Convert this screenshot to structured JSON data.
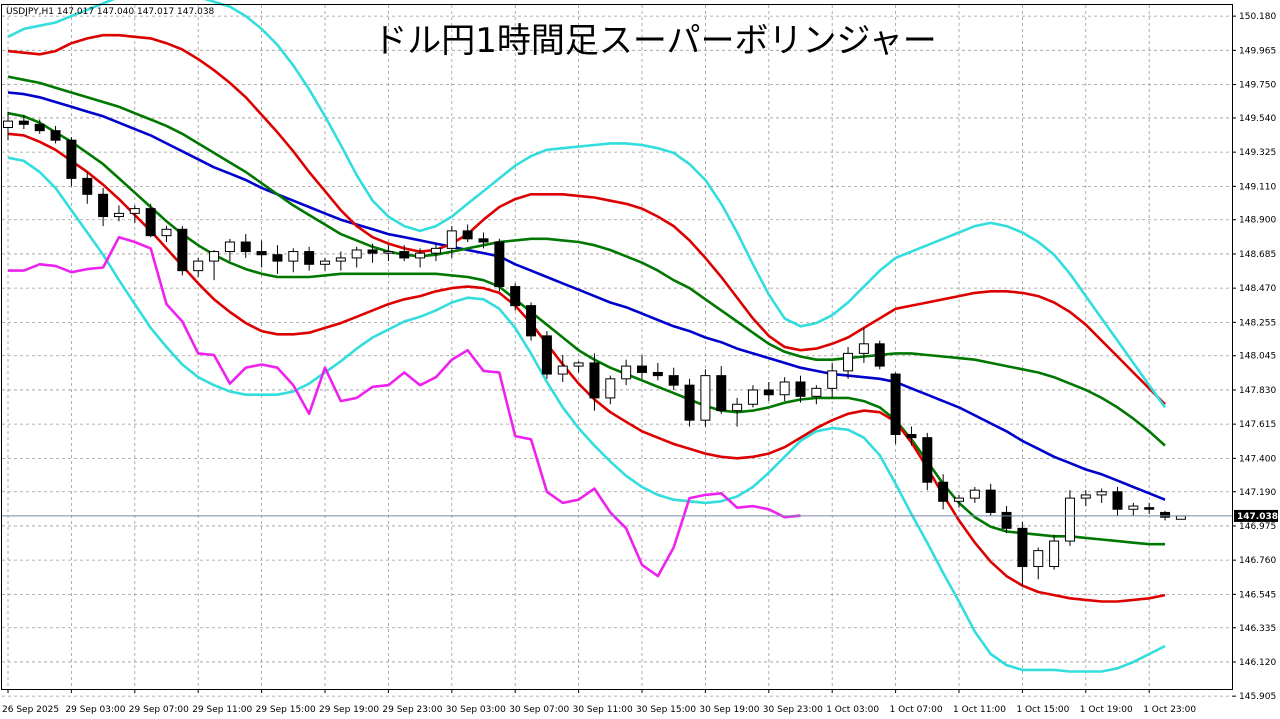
{
  "chart_data": {
    "type": "candlestick",
    "title": "ドル円1時間足スーパーボリンジャー",
    "symbol_info": "USDJPY,H1  147.017 147.040 147.017 147.038",
    "current_price": "147.038",
    "ylim": [
      145.95,
      150.25
    ],
    "xlim": [
      0,
      74
    ],
    "grid": true,
    "y_ticks": [
      "150.180",
      "149.965",
      "149.750",
      "149.540",
      "149.325",
      "149.110",
      "148.900",
      "148.685",
      "148.470",
      "148.255",
      "148.045",
      "147.830",
      "147.615",
      "147.400",
      "147.190",
      "146.975",
      "146.760",
      "146.545",
      "146.335",
      "146.120",
      "145.905"
    ],
    "x_ticks": [
      {
        "x": 0,
        "label": "26 Sep 2025"
      },
      {
        "x": 4,
        "label": "29 Sep 03:00"
      },
      {
        "x": 8,
        "label": "29 Sep 07:00"
      },
      {
        "x": 12,
        "label": "29 Sep 11:00"
      },
      {
        "x": 16,
        "label": "29 Sep 15:00"
      },
      {
        "x": 20,
        "label": "29 Sep 19:00"
      },
      {
        "x": 24,
        "label": "29 Sep 23:00"
      },
      {
        "x": 28,
        "label": "30 Sep 03:00"
      },
      {
        "x": 32,
        "label": "30 Sep 07:00"
      },
      {
        "x": 36,
        "label": "30 Sep 11:00"
      },
      {
        "x": 40,
        "label": "30 Sep 15:00"
      },
      {
        "x": 44,
        "label": "30 Sep 19:00"
      },
      {
        "x": 48,
        "label": "30 Sep 23:00"
      },
      {
        "x": 52,
        "label": "1 Oct 03:00"
      },
      {
        "x": 56,
        "label": "1 Oct 07:00"
      },
      {
        "x": 60,
        "label": "1 Oct 11:00"
      },
      {
        "x": 64,
        "label": "1 Oct 15:00"
      },
      {
        "x": 68,
        "label": "1 Oct 19:00"
      },
      {
        "x": 72,
        "label": "1 Oct 23:00"
      }
    ],
    "candles": [
      [
        149.48,
        149.58,
        149.4,
        149.52
      ],
      [
        149.52,
        149.56,
        149.47,
        149.5
      ],
      [
        149.5,
        149.53,
        149.44,
        149.46
      ],
      [
        149.46,
        149.49,
        149.38,
        149.4
      ],
      [
        149.4,
        149.42,
        149.11,
        149.16
      ],
      [
        149.16,
        149.2,
        149.0,
        149.06
      ],
      [
        149.06,
        149.1,
        148.86,
        148.92
      ],
      [
        148.92,
        148.99,
        148.89,
        148.94
      ],
      [
        148.94,
        148.99,
        148.88,
        148.97
      ],
      [
        148.97,
        149.0,
        148.79,
        148.8
      ],
      [
        148.8,
        148.86,
        148.76,
        148.84
      ],
      [
        148.84,
        148.86,
        148.55,
        148.58
      ],
      [
        148.58,
        148.66,
        148.54,
        148.64
      ],
      [
        148.64,
        148.71,
        148.52,
        148.7
      ],
      [
        148.7,
        148.78,
        148.64,
        148.76
      ],
      [
        148.76,
        148.81,
        148.66,
        148.7
      ],
      [
        148.7,
        148.77,
        148.6,
        148.68
      ],
      [
        148.68,
        148.74,
        148.56,
        148.64
      ],
      [
        148.64,
        148.72,
        148.57,
        148.7
      ],
      [
        148.7,
        148.73,
        148.58,
        148.62
      ],
      [
        148.62,
        148.66,
        148.58,
        148.64
      ],
      [
        148.64,
        148.7,
        148.58,
        148.66
      ],
      [
        148.66,
        148.73,
        148.6,
        148.71
      ],
      [
        148.71,
        148.75,
        148.63,
        148.69
      ],
      [
        148.69,
        148.74,
        148.64,
        148.7
      ],
      [
        148.7,
        148.74,
        148.64,
        148.66
      ],
      [
        148.66,
        148.72,
        148.6,
        148.69
      ],
      [
        148.69,
        148.75,
        148.64,
        148.72
      ],
      [
        148.72,
        148.86,
        148.66,
        148.83
      ],
      [
        148.83,
        148.87,
        148.76,
        148.78
      ],
      [
        148.78,
        148.82,
        148.72,
        148.76
      ],
      [
        148.76,
        148.78,
        148.45,
        148.48
      ],
      [
        148.48,
        148.5,
        148.33,
        148.36
      ],
      [
        148.36,
        148.38,
        148.14,
        148.17
      ],
      [
        148.17,
        148.2,
        147.9,
        147.93
      ],
      [
        147.93,
        148.05,
        147.88,
        147.98
      ],
      [
        147.98,
        148.01,
        147.94,
        148.0
      ],
      [
        148.0,
        148.06,
        147.7,
        147.78
      ],
      [
        147.78,
        147.92,
        147.74,
        147.9
      ],
      [
        147.9,
        148.02,
        147.86,
        147.98
      ],
      [
        147.98,
        148.05,
        147.9,
        147.94
      ],
      [
        147.94,
        148.0,
        147.89,
        147.92
      ],
      [
        147.92,
        147.97,
        147.83,
        147.86
      ],
      [
        147.86,
        147.9,
        147.6,
        147.64
      ],
      [
        147.64,
        147.96,
        147.6,
        147.92
      ],
      [
        147.92,
        147.98,
        147.68,
        147.7
      ],
      [
        147.7,
        147.78,
        147.6,
        147.74
      ],
      [
        147.74,
        147.86,
        147.72,
        147.83
      ],
      [
        147.83,
        147.88,
        147.76,
        147.8
      ],
      [
        147.8,
        147.91,
        147.76,
        147.88
      ],
      [
        147.88,
        147.92,
        147.75,
        147.79
      ],
      [
        147.79,
        147.86,
        147.74,
        147.84
      ],
      [
        147.84,
        148.0,
        147.78,
        147.95
      ],
      [
        147.95,
        148.1,
        147.9,
        148.06
      ],
      [
        148.06,
        148.22,
        148.0,
        148.12
      ],
      [
        148.12,
        148.14,
        147.96,
        147.98
      ],
      [
        147.93,
        147.94,
        147.49,
        147.55
      ],
      [
        147.55,
        147.6,
        147.48,
        147.53
      ],
      [
        147.53,
        147.56,
        147.2,
        147.25
      ],
      [
        147.25,
        147.3,
        147.08,
        147.13
      ],
      [
        147.13,
        147.17,
        147.09,
        147.15
      ],
      [
        147.15,
        147.22,
        147.12,
        147.2
      ],
      [
        147.2,
        147.24,
        147.04,
        147.06
      ],
      [
        147.06,
        147.1,
        146.93,
        146.96
      ],
      [
        146.96,
        147.0,
        146.6,
        146.72
      ],
      [
        146.72,
        146.84,
        146.64,
        146.82
      ],
      [
        146.72,
        146.92,
        146.7,
        146.88
      ],
      [
        146.88,
        147.2,
        146.85,
        147.15
      ],
      [
        147.15,
        147.2,
        147.1,
        147.17
      ],
      [
        147.17,
        147.21,
        147.12,
        147.19
      ],
      [
        147.19,
        147.22,
        147.04,
        147.08
      ],
      [
        147.08,
        147.12,
        147.04,
        147.1
      ],
      [
        147.09,
        147.12,
        147.05,
        147.08
      ],
      [
        147.06,
        147.07,
        147.01,
        147.03
      ],
      [
        147.017,
        147.04,
        147.017,
        147.038
      ]
    ],
    "series": [
      {
        "role": "center",
        "color": "#0000cc",
        "values": [
          149.7,
          149.69,
          149.67,
          149.64,
          149.61,
          149.58,
          149.55,
          149.51,
          149.47,
          149.43,
          149.38,
          149.33,
          149.28,
          149.23,
          149.19,
          149.15,
          149.1,
          149.06,
          149.02,
          148.98,
          148.94,
          148.9,
          148.87,
          148.84,
          148.81,
          148.79,
          148.77,
          148.75,
          148.73,
          148.71,
          148.69,
          148.67,
          148.62,
          148.58,
          148.54,
          148.5,
          148.46,
          148.42,
          148.38,
          148.35,
          148.31,
          148.27,
          148.23,
          148.2,
          148.16,
          148.13,
          148.09,
          148.06,
          148.03,
          148.0,
          147.97,
          147.95,
          147.93,
          147.92,
          147.91,
          147.9,
          147.88,
          147.84,
          147.8,
          147.76,
          147.72,
          147.67,
          147.62,
          147.57,
          147.51,
          147.46,
          147.41,
          147.37,
          147.33,
          147.3,
          147.26,
          147.22,
          147.18,
          147.14
        ]
      },
      {
        "role": "+1sigma",
        "color": "#007700",
        "values": [
          149.8,
          149.78,
          149.76,
          149.73,
          149.7,
          149.67,
          149.64,
          149.61,
          149.57,
          149.53,
          149.49,
          149.44,
          149.38,
          149.32,
          149.26,
          149.2,
          149.13,
          149.06,
          148.99,
          148.93,
          148.87,
          148.81,
          148.77,
          148.73,
          148.7,
          148.68,
          148.67,
          148.68,
          148.7,
          148.72,
          148.74,
          148.76,
          148.77,
          148.78,
          148.78,
          148.77,
          148.76,
          148.74,
          148.71,
          148.67,
          148.63,
          148.58,
          148.52,
          148.47,
          148.4,
          148.33,
          148.26,
          148.19,
          148.12,
          148.07,
          148.04,
          148.02,
          148.02,
          148.03,
          148.04,
          148.05,
          148.06,
          148.06,
          148.05,
          148.04,
          148.03,
          148.02,
          148.0,
          147.98,
          147.96,
          147.94,
          147.91,
          147.87,
          147.83,
          147.78,
          147.72,
          147.65,
          147.57,
          147.48
        ]
      },
      {
        "role": "-1sigma",
        "color": "#007700",
        "values": [
          149.57,
          149.55,
          149.51,
          149.45,
          149.39,
          149.32,
          149.25,
          149.16,
          149.07,
          148.98,
          148.89,
          148.81,
          148.74,
          148.68,
          148.63,
          148.59,
          148.56,
          148.54,
          148.54,
          148.54,
          148.55,
          148.56,
          148.56,
          148.56,
          148.56,
          148.56,
          148.56,
          148.56,
          148.55,
          148.54,
          148.52,
          148.48,
          148.4,
          148.32,
          148.24,
          148.16,
          148.08,
          148.02,
          147.97,
          147.93,
          147.89,
          147.85,
          147.81,
          147.77,
          147.73,
          147.7,
          147.69,
          147.7,
          147.72,
          147.75,
          147.77,
          147.78,
          147.78,
          147.78,
          147.76,
          147.72,
          147.64,
          147.52,
          147.38,
          147.24,
          147.12,
          147.03,
          146.97,
          146.94,
          146.93,
          146.92,
          146.91,
          146.91,
          146.9,
          146.89,
          146.88,
          146.87,
          146.86,
          146.86
        ]
      },
      {
        "role": "+2sigma",
        "color": "#dd0000",
        "values": [
          149.96,
          149.95,
          149.94,
          149.96,
          150.01,
          150.04,
          150.06,
          150.06,
          150.05,
          150.04,
          150.01,
          149.97,
          149.91,
          149.84,
          149.76,
          149.67,
          149.56,
          149.45,
          149.33,
          149.2,
          149.08,
          148.96,
          148.86,
          148.79,
          148.75,
          148.72,
          148.7,
          148.71,
          148.75,
          148.81,
          148.9,
          148.98,
          149.03,
          149.06,
          149.06,
          149.06,
          149.05,
          149.04,
          149.02,
          149.0,
          148.97,
          148.92,
          148.86,
          148.77,
          148.66,
          148.54,
          148.41,
          148.28,
          148.17,
          148.1,
          148.08,
          148.09,
          148.12,
          148.16,
          148.22,
          148.28,
          148.34,
          148.36,
          148.38,
          148.4,
          148.42,
          148.44,
          148.45,
          148.45,
          148.44,
          148.42,
          148.38,
          148.32,
          148.24,
          148.14,
          148.04,
          147.94,
          147.84,
          147.74
        ]
      },
      {
        "role": "-2sigma",
        "color": "#dd0000",
        "values": [
          149.44,
          149.43,
          149.39,
          149.34,
          149.27,
          149.2,
          149.12,
          149.03,
          148.93,
          148.83,
          148.72,
          148.61,
          148.5,
          148.4,
          148.32,
          148.25,
          148.2,
          148.18,
          148.18,
          148.19,
          148.22,
          148.25,
          148.29,
          148.33,
          148.37,
          148.4,
          148.42,
          148.45,
          148.47,
          148.48,
          148.47,
          148.44,
          148.36,
          148.25,
          148.12,
          147.99,
          147.87,
          147.77,
          147.69,
          147.63,
          147.57,
          147.53,
          147.49,
          147.46,
          147.43,
          147.41,
          147.4,
          147.41,
          147.43,
          147.47,
          147.53,
          147.59,
          147.64,
          147.68,
          147.7,
          147.69,
          147.63,
          147.5,
          147.34,
          147.17,
          147.01,
          146.87,
          146.75,
          146.66,
          146.6,
          146.56,
          146.54,
          146.52,
          146.51,
          146.5,
          146.5,
          146.51,
          146.52,
          146.54
        ]
      },
      {
        "role": "+3sigma",
        "color": "#33dddd",
        "values": [
          150.05,
          150.1,
          150.12,
          150.14,
          150.18,
          150.22,
          150.26,
          150.3,
          150.31,
          150.32,
          150.32,
          150.31,
          150.3,
          150.27,
          150.24,
          150.18,
          150.1,
          150.0,
          149.87,
          149.72,
          149.55,
          149.37,
          149.18,
          149.02,
          148.92,
          148.86,
          148.83,
          148.86,
          148.92,
          149.0,
          149.08,
          149.16,
          149.24,
          149.3,
          149.34,
          149.35,
          149.36,
          149.37,
          149.38,
          149.38,
          149.37,
          149.35,
          149.32,
          149.25,
          149.15,
          149.0,
          148.82,
          148.62,
          148.43,
          148.28,
          148.23,
          148.25,
          148.3,
          148.38,
          148.48,
          148.58,
          148.66,
          148.7,
          148.74,
          148.78,
          148.82,
          148.86,
          148.88,
          148.86,
          148.82,
          148.76,
          148.68,
          148.56,
          148.42,
          148.28,
          148.14,
          148.0,
          147.86,
          147.72
        ]
      },
      {
        "role": "-3sigma",
        "color": "#33dddd",
        "values": [
          149.29,
          149.27,
          149.2,
          149.1,
          148.96,
          148.82,
          148.68,
          148.52,
          148.37,
          148.22,
          148.1,
          147.99,
          147.91,
          147.86,
          147.82,
          147.8,
          147.8,
          147.8,
          147.82,
          147.87,
          147.94,
          148.01,
          148.09,
          148.16,
          148.21,
          148.26,
          148.29,
          148.33,
          148.38,
          148.41,
          148.4,
          148.34,
          148.22,
          148.06,
          147.88,
          147.72,
          147.59,
          147.48,
          147.38,
          147.29,
          147.22,
          147.17,
          147.14,
          147.13,
          147.12,
          147.13,
          147.16,
          147.22,
          147.31,
          147.41,
          147.51,
          147.57,
          147.59,
          147.58,
          147.53,
          147.42,
          147.24,
          147.05,
          146.87,
          146.68,
          146.5,
          146.31,
          146.17,
          146.1,
          146.07,
          146.07,
          146.07,
          146.06,
          146.06,
          146.06,
          146.08,
          146.12,
          146.17,
          146.22
        ]
      },
      {
        "role": "chikou",
        "color": "#ee22ee",
        "values": [
          148.58,
          148.58,
          148.62,
          148.61,
          148.57,
          148.59,
          148.6,
          148.79,
          148.76,
          148.72,
          148.37,
          148.26,
          148.06,
          148.05,
          147.87,
          147.97,
          147.99,
          147.97,
          147.86,
          147.68,
          147.97,
          147.76,
          147.78,
          147.85,
          147.86,
          147.94,
          147.86,
          147.91,
          148.02,
          148.08,
          147.95,
          147.94,
          147.54,
          147.52,
          147.19,
          147.12,
          147.14,
          147.21,
          147.06,
          146.96,
          146.73,
          146.66,
          146.84,
          147.15,
          147.17,
          147.18,
          147.09,
          147.1,
          147.08,
          147.03,
          147.04
        ]
      }
    ]
  }
}
